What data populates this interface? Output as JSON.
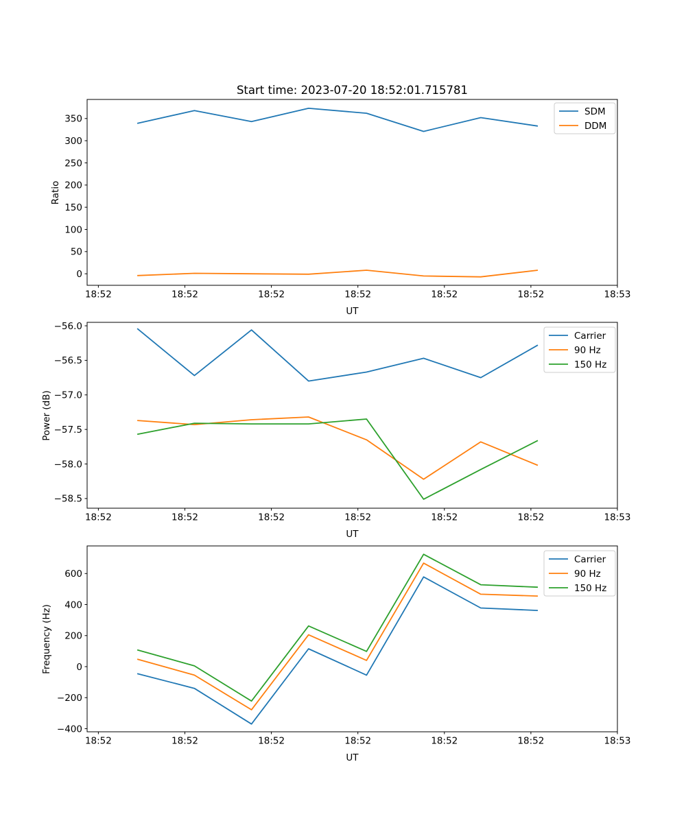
{
  "figure": {
    "title": "Start time: 2023-07-20 18:52:01.715781",
    "background": "#ffffff"
  },
  "chart_data": [
    {
      "type": "line",
      "name": "ratio",
      "xlabel": "UT",
      "ylabel": "Ratio",
      "x_seconds_after_1852": [
        4.5,
        11.1,
        17.7,
        24.3,
        31.0,
        37.6,
        44.2,
        50.8
      ],
      "xlim_seconds": [
        -1.3,
        60
      ],
      "xticks_seconds": [
        0,
        10,
        20,
        30,
        40,
        50,
        60
      ],
      "xtick_labels": [
        "18:52",
        "18:52",
        "18:52",
        "18:52",
        "18:52",
        "18:52",
        "18:53"
      ],
      "ylim": [
        -26,
        393
      ],
      "yticks": [
        0,
        50,
        100,
        150,
        200,
        250,
        300,
        350
      ],
      "ytick_labels": [
        "0",
        "50",
        "100",
        "150",
        "200",
        "250",
        "300",
        "350"
      ],
      "grid": false,
      "legend_position": "upper right",
      "series": [
        {
          "name": "SDM",
          "color": "#1f77b4",
          "values": [
            339,
            368,
            343,
            373,
            362,
            321,
            352,
            333
          ]
        },
        {
          "name": "DDM",
          "color": "#ff7f0e",
          "values": [
            -4,
            1,
            0,
            -1,
            8,
            -5,
            -7,
            8
          ]
        }
      ]
    },
    {
      "type": "line",
      "name": "power",
      "xlabel": "UT",
      "ylabel": "Power (dB)",
      "x_seconds_after_1852": [
        4.5,
        11.1,
        17.7,
        24.3,
        31.0,
        37.6,
        44.2,
        50.8
      ],
      "xlim_seconds": [
        -1.3,
        60
      ],
      "xticks_seconds": [
        0,
        10,
        20,
        30,
        40,
        50,
        60
      ],
      "xtick_labels": [
        "18:52",
        "18:52",
        "18:52",
        "18:52",
        "18:52",
        "18:52",
        "18:53"
      ],
      "ylim": [
        -58.64,
        -55.95
      ],
      "yticks": [
        -56.0,
        -56.5,
        -57.0,
        -57.5,
        -58.0,
        -58.5
      ],
      "ytick_labels": [
        "−56.0",
        "−56.5",
        "−57.0",
        "−57.5",
        "−58.0",
        "−58.5"
      ],
      "grid": false,
      "legend_position": "upper right",
      "series": [
        {
          "name": "Carrier",
          "color": "#1f77b4",
          "values": [
            -56.04,
            -56.72,
            -56.06,
            -56.8,
            -56.67,
            -56.47,
            -56.75,
            -56.28
          ]
        },
        {
          "name": "90 Hz",
          "color": "#ff7f0e",
          "values": [
            -57.37,
            -57.43,
            -57.36,
            -57.32,
            -57.65,
            -58.22,
            -57.68,
            -58.02
          ]
        },
        {
          "name": "150 Hz",
          "color": "#2ca02c",
          "values": [
            -57.57,
            -57.41,
            -57.42,
            -57.42,
            -57.35,
            -58.51,
            -58.08,
            -57.66
          ]
        }
      ]
    },
    {
      "type": "line",
      "name": "frequency",
      "xlabel": "UT",
      "ylabel": "Frequency (Hz)",
      "x_seconds_after_1852": [
        4.5,
        11.1,
        17.7,
        24.3,
        31.0,
        37.6,
        44.2,
        50.8
      ],
      "xlim_seconds": [
        -1.3,
        60
      ],
      "xticks_seconds": [
        0,
        10,
        20,
        30,
        40,
        50,
        60
      ],
      "xtick_labels": [
        "18:52",
        "18:52",
        "18:52",
        "18:52",
        "18:52",
        "18:52",
        "18:53"
      ],
      "ylim": [
        -420,
        778
      ],
      "yticks": [
        -400,
        -200,
        0,
        200,
        400,
        600
      ],
      "ytick_labels": [
        "−400",
        "−200",
        "0",
        "200",
        "400",
        "600"
      ],
      "grid": false,
      "legend_position": "upper right",
      "series": [
        {
          "name": "Carrier",
          "color": "#1f77b4",
          "values": [
            -45,
            -140,
            -370,
            115,
            -55,
            578,
            378,
            362
          ]
        },
        {
          "name": "90 Hz",
          "color": "#ff7f0e",
          "values": [
            48,
            -55,
            -278,
            205,
            40,
            667,
            467,
            455
          ]
        },
        {
          "name": "150 Hz",
          "color": "#2ca02c",
          "values": [
            108,
            5,
            -222,
            262,
            98,
            724,
            528,
            512
          ]
        }
      ]
    }
  ]
}
